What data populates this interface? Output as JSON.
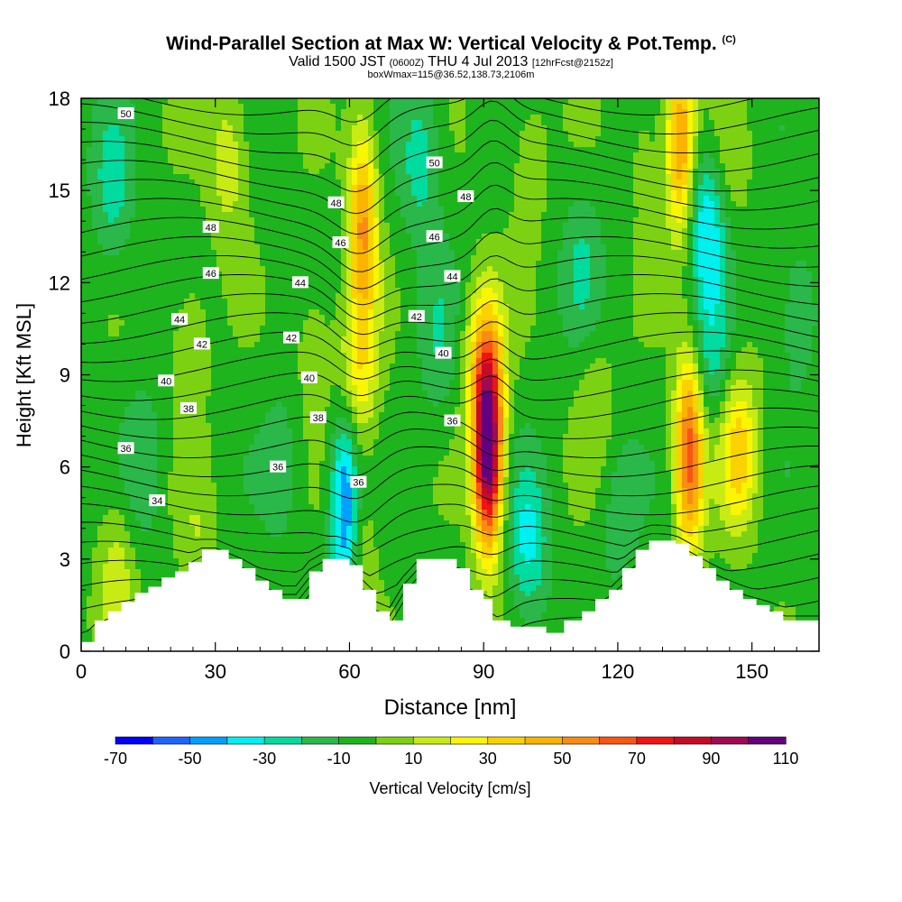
{
  "header": {
    "title": "Wind-Parallel Section at Max W: Vertical Velocity & Pot.Temp.",
    "title_mark": "(C)",
    "subtitle_main": "Valid 1500 JST",
    "subtitle_z": "(0600Z)",
    "subtitle_date": "THU 4 Jul 2013",
    "subtitle_fcst": "[12hrFcst@2152z]",
    "boxline": "boxWmax=115@36.52,138.73,2106m"
  },
  "chart_data": {
    "type": "heatmap",
    "xlabel": "Distance [nm]",
    "ylabel": "Height [Kft MSL]",
    "xlim": [
      0,
      165
    ],
    "ylim": [
      0,
      18
    ],
    "x_ticks": [
      0,
      30,
      60,
      90,
      120,
      150
    ],
    "y_ticks": [
      0,
      3,
      6,
      9,
      12,
      15,
      18
    ],
    "colorbar": {
      "label": "Vertical Velocity [cm/s]",
      "tick_labels": [
        -70,
        -50,
        -30,
        -10,
        10,
        30,
        50,
        70,
        90,
        110
      ],
      "levels": [
        -70,
        -60,
        -50,
        -40,
        -30,
        -20,
        -10,
        0,
        10,
        20,
        30,
        40,
        50,
        60,
        70,
        80,
        90,
        100,
        110
      ],
      "colors": [
        "#0000ff",
        "#1e64ff",
        "#00a0ff",
        "#00f0f0",
        "#00dca0",
        "#2ab84a",
        "#1eb41e",
        "#7cd212",
        "#c8eb14",
        "#faf500",
        "#fad200",
        "#fab400",
        "#fa8c14",
        "#fa5514",
        "#f01414",
        "#c80a28",
        "#a00a50",
        "#640080"
      ]
    },
    "updrafts": [
      {
        "x": 63,
        "y": 14,
        "w": 55
      },
      {
        "x": 62,
        "y": 9,
        "w": 30
      },
      {
        "x": 61,
        "y": 3.5,
        "w": 20
      },
      {
        "x": 91,
        "y": 6.5,
        "w": 115
      },
      {
        "x": 90,
        "y": 9.5,
        "w": 35
      },
      {
        "x": 136,
        "y": 6.5,
        "w": 70
      },
      {
        "x": 134,
        "y": 16.5,
        "w": 55
      },
      {
        "x": 147,
        "y": 6.5,
        "w": 40
      },
      {
        "x": 33,
        "y": 16,
        "w": 22
      },
      {
        "x": 24,
        "y": 10,
        "w": 14
      },
      {
        "x": 115,
        "y": 8,
        "w": 12
      },
      {
        "x": 52,
        "y": 10,
        "w": 12
      },
      {
        "x": 145,
        "y": 16,
        "w": 12
      },
      {
        "x": 8,
        "y": 2.5,
        "w": 20
      },
      {
        "x": 26,
        "y": 3.5,
        "w": 12
      },
      {
        "x": 126,
        "y": 16.5,
        "w": 10
      },
      {
        "x": 100,
        "y": 16,
        "w": 12
      }
    ],
    "downdrafts": [
      {
        "x": 59,
        "y": 4.5,
        "w": -60
      },
      {
        "x": 140,
        "y": 14,
        "w": -35
      },
      {
        "x": 141,
        "y": 9.5,
        "w": -20
      },
      {
        "x": 100,
        "y": 3.5,
        "w": -28
      },
      {
        "x": 7,
        "y": 15,
        "w": -20
      },
      {
        "x": 76,
        "y": 16,
        "w": -22
      },
      {
        "x": 112,
        "y": 12.5,
        "w": -15
      },
      {
        "x": 80,
        "y": 10,
        "w": -14
      },
      {
        "x": 160,
        "y": 11,
        "w": -15
      },
      {
        "x": 45,
        "y": 6,
        "w": -12
      },
      {
        "x": 14,
        "y": 6,
        "w": -15
      },
      {
        "x": 120,
        "y": 4.5,
        "w": -12
      }
    ],
    "terrain_kft": [
      [
        0,
        0.3
      ],
      [
        3,
        1.0
      ],
      [
        6,
        1.3
      ],
      [
        9,
        1.6
      ],
      [
        12,
        1.9
      ],
      [
        15,
        2.1
      ],
      [
        18,
        2.4
      ],
      [
        21,
        2.6
      ],
      [
        24,
        2.9
      ],
      [
        27,
        3.3
      ],
      [
        30,
        3.3
      ],
      [
        33,
        3.0
      ],
      [
        36,
        2.7
      ],
      [
        39,
        2.3
      ],
      [
        42,
        2.0
      ],
      [
        45,
        1.7
      ],
      [
        48,
        1.7
      ],
      [
        51,
        2.6
      ],
      [
        54,
        3.0
      ],
      [
        57,
        3.0
      ],
      [
        60,
        2.8
      ],
      [
        63,
        2.0
      ],
      [
        66,
        1.3
      ],
      [
        69,
        1.0
      ],
      [
        72,
        2.2
      ],
      [
        75,
        3.0
      ],
      [
        78,
        3.0
      ],
      [
        81,
        3.0
      ],
      [
        84,
        2.7
      ],
      [
        87,
        2.0
      ],
      [
        90,
        1.7
      ],
      [
        92,
        1.0
      ],
      [
        96,
        0.8
      ],
      [
        104,
        0.6
      ],
      [
        108,
        1.0
      ],
      [
        112,
        1.3
      ],
      [
        115,
        1.7
      ],
      [
        118,
        2.0
      ],
      [
        121,
        2.7
      ],
      [
        124,
        3.3
      ],
      [
        127,
        3.6
      ],
      [
        130,
        3.6
      ],
      [
        133,
        3.5
      ],
      [
        136,
        3.1
      ],
      [
        139,
        2.7
      ],
      [
        142,
        2.3
      ],
      [
        145,
        2.0
      ],
      [
        148,
        1.7
      ],
      [
        151,
        1.5
      ],
      [
        154,
        1.3
      ],
      [
        157,
        1.0
      ],
      [
        161,
        1.0
      ],
      [
        165,
        1.0
      ]
    ],
    "theta_contour_labels": [
      {
        "text": "50",
        "x": 10,
        "y": 17.5
      },
      {
        "text": "48",
        "x": 29,
        "y": 13.8
      },
      {
        "text": "46",
        "x": 29,
        "y": 12.3
      },
      {
        "text": "44",
        "x": 22,
        "y": 10.8
      },
      {
        "text": "42",
        "x": 27,
        "y": 10.0
      },
      {
        "text": "40",
        "x": 19,
        "y": 8.8
      },
      {
        "text": "38",
        "x": 24,
        "y": 7.9
      },
      {
        "text": "36",
        "x": 10,
        "y": 6.6
      },
      {
        "text": "34",
        "x": 17,
        "y": 4.9
      },
      {
        "text": "36",
        "x": 44,
        "y": 6.0
      },
      {
        "text": "44",
        "x": 49,
        "y": 12.0
      },
      {
        "text": "42",
        "x": 47,
        "y": 10.2
      },
      {
        "text": "40",
        "x": 51,
        "y": 8.9
      },
      {
        "text": "38",
        "x": 53,
        "y": 7.6
      },
      {
        "text": "48",
        "x": 57,
        "y": 14.6
      },
      {
        "text": "46",
        "x": 58,
        "y": 13.3
      },
      {
        "text": "36",
        "x": 62,
        "y": 5.5
      },
      {
        "text": "50",
        "x": 79,
        "y": 15.9
      },
      {
        "text": "48",
        "x": 86,
        "y": 14.8
      },
      {
        "text": "46",
        "x": 79,
        "y": 13.5
      },
      {
        "text": "44",
        "x": 83,
        "y": 12.2
      },
      {
        "text": "42",
        "x": 75,
        "y": 10.9
      },
      {
        "text": "40",
        "x": 81,
        "y": 9.7
      },
      {
        "text": "36",
        "x": 83,
        "y": 7.5
      }
    ]
  }
}
